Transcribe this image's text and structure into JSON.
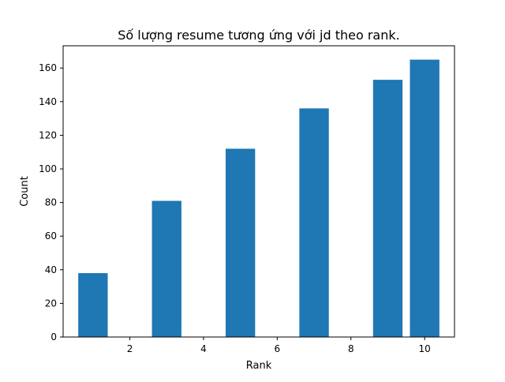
{
  "chart_data": {
    "type": "bar",
    "title": "Số lượng resume tương ứng với jd theo rank.",
    "xlabel": "Rank",
    "ylabel": "Count",
    "bars": [
      {
        "x": 1,
        "value": 38
      },
      {
        "x": 3,
        "value": 81
      },
      {
        "x": 5,
        "value": 112
      },
      {
        "x": 7,
        "value": 136
      },
      {
        "x": 9,
        "value": 153
      },
      {
        "x": 10,
        "value": 165
      }
    ],
    "bar_width": 0.8,
    "xlim": [
      0.19,
      10.81
    ],
    "ylim": [
      0,
      173.25
    ],
    "xticks": [
      2,
      4,
      6,
      8,
      10
    ],
    "yticks": [
      0,
      20,
      40,
      60,
      80,
      100,
      120,
      140,
      160
    ],
    "color": "#1f77b4",
    "grid": false,
    "legend": false
  }
}
